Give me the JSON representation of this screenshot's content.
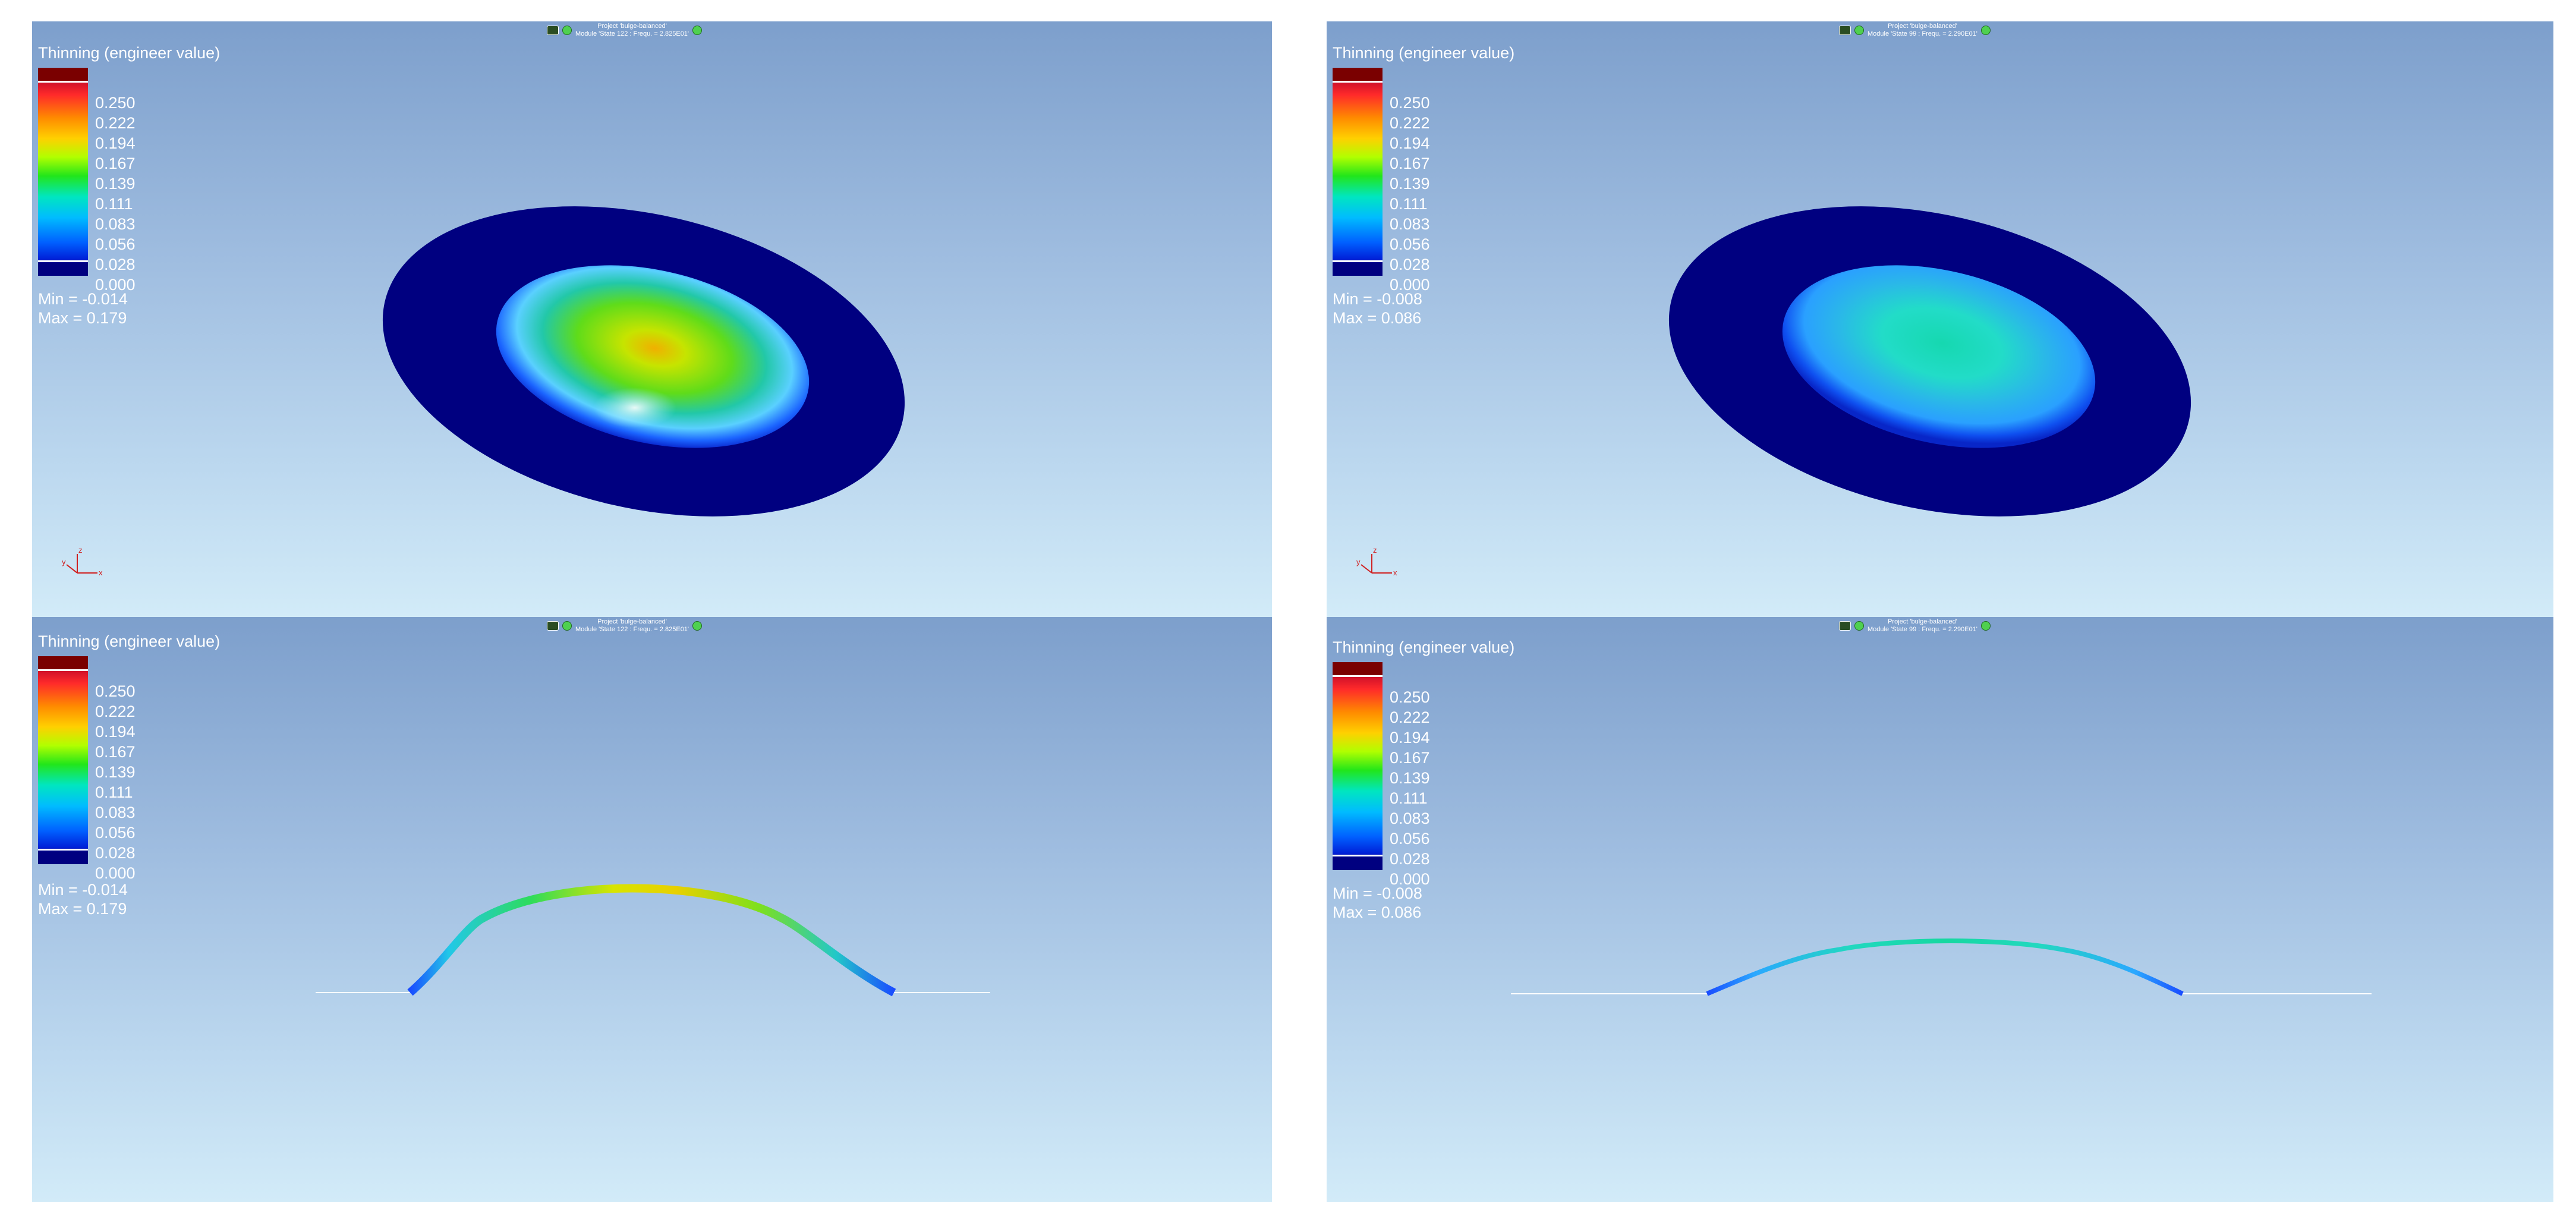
{
  "colors": {
    "background_top": "#7d9fcc",
    "background_bottom": "#d2ebf8",
    "blank_thinning": "#000080",
    "legend_text": "#ffffff"
  },
  "legend_ticks": [
    "0.250",
    "0.222",
    "0.194",
    "0.167",
    "0.139",
    "0.111",
    "0.083",
    "0.056",
    "0.028",
    "0.000"
  ],
  "viewports": [
    {
      "view": "3d-dome",
      "title": "Thinning (engineer value)",
      "header": {
        "project": "Project 'bulge-balanced'",
        "module": "Module 'State 122 : Frequ. = 2.825E01'"
      },
      "min": "Min = -0.014",
      "max": "Max =  0.179",
      "max_value": 0.179,
      "axes_icon": "xyz-axes-icon"
    },
    {
      "view": "3d-dome",
      "title": "Thinning (engineer value)",
      "header": {
        "project": "Project 'bulge-balanced'",
        "module": "Module 'State 99 : Frequ. = 2.290E01'"
      },
      "min": "Min = -0.008",
      "max": "Max =  0.086",
      "max_value": 0.086,
      "axes_icon": "xyz-axes-icon"
    },
    {
      "view": "section",
      "title": "Thinning (engineer value)",
      "header": {
        "project": "Project 'bulge-balanced'",
        "module": "Module 'State 122 : Frequ. = 2.825E01'"
      },
      "min": "Min = -0.014",
      "max": "Max =  0.179",
      "max_value": 0.179
    },
    {
      "view": "section",
      "title": "Thinning (engineer value)",
      "header": {
        "project": "Project 'bulge-balanced'",
        "module": "Module 'State 99 : Frequ. = 2.290E01'"
      },
      "min": "Min = -0.008",
      "max": "Max =  0.086",
      "max_value": 0.086
    }
  ]
}
